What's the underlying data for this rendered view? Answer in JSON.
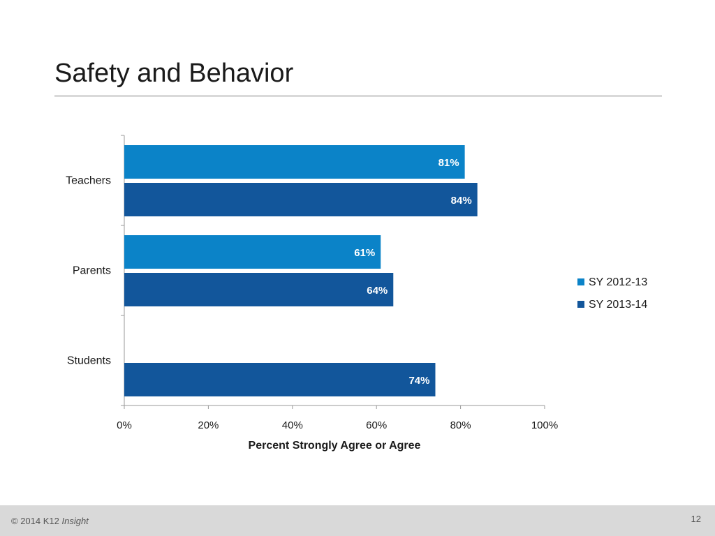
{
  "slide": {
    "title": "Safety and Behavior",
    "page_number": "12"
  },
  "footer": {
    "copyright": "© 2014 K12",
    "brand_italic": "Insight"
  },
  "colors": {
    "series_2012": "#0b83c8",
    "series_2013": "#12569b",
    "axis": "#999999",
    "label_text": "#ffffff"
  },
  "chart_data": {
    "type": "bar",
    "orientation": "horizontal",
    "categories": [
      "Teachers",
      "Parents",
      "Students"
    ],
    "series": [
      {
        "name": "SY 2012-13",
        "values": [
          81,
          61,
          null
        ],
        "labels": [
          "81%",
          "61%",
          ""
        ]
      },
      {
        "name": "SY 2013-14",
        "values": [
          84,
          64,
          74
        ],
        "labels": [
          "84%",
          "64%",
          "74%"
        ]
      }
    ],
    "xlim": [
      0,
      100
    ],
    "xticks": [
      "0%",
      "20%",
      "40%",
      "60%",
      "80%",
      "100%"
    ],
    "xtick_values": [
      0,
      20,
      40,
      60,
      80,
      100
    ],
    "xlabel": "Percent Strongly Agree or Agree",
    "title": "",
    "legend_position": "right",
    "grid": false
  }
}
